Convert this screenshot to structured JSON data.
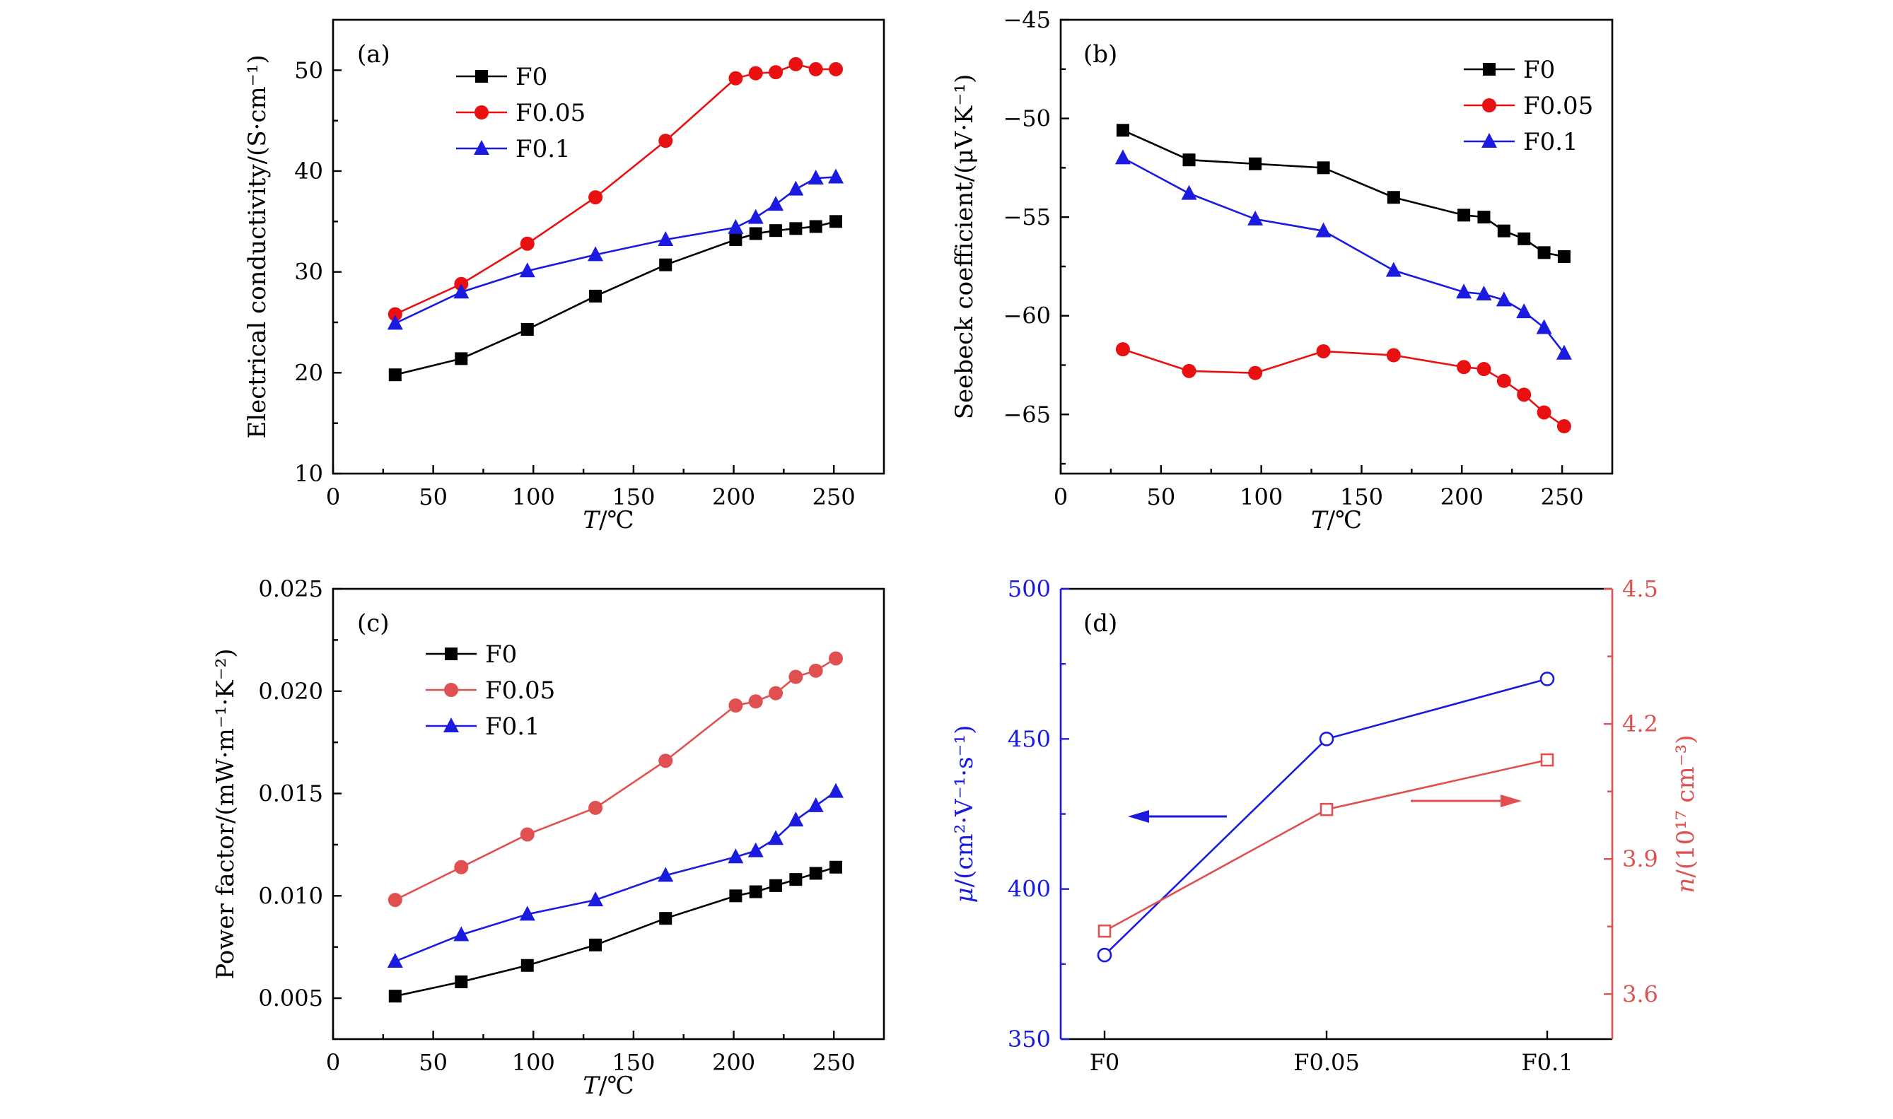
{
  "colors": {
    "F0": "#000000",
    "F0.05_a": "#e81010",
    "F0.05_c": "#e05050",
    "F0.1": "#1a1ae0",
    "mu": "#1a1ae0",
    "n": "#e05050"
  },
  "chart_data": [
    {
      "panel": "(a)",
      "type": "line",
      "xlabel": "T/℃",
      "ylabel": "Electrical conductivity/(S·cm⁻¹)",
      "xlim": [
        0,
        275
      ],
      "ylim": [
        10,
        55
      ],
      "xticks": [
        "0",
        "50",
        "100",
        "150",
        "200",
        "250"
      ],
      "yticks": [
        "10",
        "20",
        "30",
        "40",
        "50"
      ],
      "legend_position": "top-left",
      "series": [
        {
          "name": "F0",
          "marker": "square",
          "color": "#000000",
          "x": [
            31,
            64,
            97,
            131,
            166,
            201,
            211,
            221,
            231,
            241,
            251
          ],
          "y": [
            19.8,
            21.4,
            24.3,
            27.6,
            30.7,
            33.2,
            33.8,
            34.1,
            34.3,
            34.5,
            35.0
          ]
        },
        {
          "name": "F0.05",
          "marker": "circle",
          "color": "#e81010",
          "x": [
            31,
            64,
            97,
            131,
            166,
            201,
            211,
            221,
            231,
            241,
            251
          ],
          "y": [
            25.8,
            28.8,
            32.8,
            37.4,
            43.0,
            49.2,
            49.7,
            49.8,
            50.6,
            50.1,
            50.1
          ]
        },
        {
          "name": "F0.1",
          "marker": "triangle",
          "color": "#1a1ae0",
          "x": [
            31,
            64,
            97,
            131,
            166,
            201,
            211,
            221,
            231,
            241,
            251
          ],
          "y": [
            24.9,
            28.0,
            30.1,
            31.7,
            33.2,
            34.4,
            35.4,
            36.7,
            38.2,
            39.3,
            39.4
          ]
        }
      ]
    },
    {
      "panel": "(b)",
      "type": "line",
      "xlabel": "T/℃",
      "ylabel": "Seebeck coefficient/(μV·K⁻¹)",
      "xlim": [
        0,
        275
      ],
      "ylim": [
        -68,
        -45
      ],
      "xticks": [
        "0",
        "50",
        "100",
        "150",
        "200",
        "250"
      ],
      "yticks": [
        "−45",
        "−50",
        "−55",
        "−60",
        "−65"
      ],
      "legend_position": "top-right",
      "series": [
        {
          "name": "F0",
          "marker": "square",
          "color": "#000000",
          "x": [
            31,
            64,
            97,
            131,
            166,
            201,
            211,
            221,
            231,
            241,
            251
          ],
          "y": [
            -50.6,
            -52.1,
            -52.3,
            -52.5,
            -54.0,
            -54.9,
            -55.0,
            -55.7,
            -56.1,
            -56.8,
            -57.0
          ]
        },
        {
          "name": "F0.05",
          "marker": "circle",
          "color": "#e81010",
          "x": [
            31,
            64,
            97,
            131,
            166,
            201,
            211,
            221,
            231,
            241,
            251
          ],
          "y": [
            -61.7,
            -62.8,
            -62.9,
            -61.8,
            -62.0,
            -62.6,
            -62.7,
            -63.3,
            -64.0,
            -64.9,
            -65.6
          ]
        },
        {
          "name": "F0.1",
          "marker": "triangle",
          "color": "#1a1ae0",
          "x": [
            31,
            64,
            97,
            131,
            166,
            201,
            211,
            221,
            231,
            241,
            251
          ],
          "y": [
            -52.0,
            -53.8,
            -55.1,
            -55.7,
            -57.7,
            -58.8,
            -58.9,
            -59.2,
            -59.8,
            -60.6,
            -61.9
          ]
        }
      ]
    },
    {
      "panel": "(c)",
      "type": "line",
      "xlabel": "T/℃",
      "ylabel": "Power factor/(mW·m⁻¹·K⁻²)",
      "xlim": [
        0,
        275
      ],
      "ylim": [
        0.003,
        0.025
      ],
      "xticks": [
        "0",
        "50",
        "100",
        "150",
        "200",
        "250"
      ],
      "yticks": [
        "0.005",
        "0.010",
        "0.015",
        "0.020",
        "0.025"
      ],
      "legend_position": "top-left",
      "series": [
        {
          "name": "F0",
          "marker": "square",
          "color": "#000000",
          "x": [
            31,
            64,
            97,
            131,
            166,
            201,
            211,
            221,
            231,
            241,
            251
          ],
          "y": [
            0.0051,
            0.0058,
            0.0066,
            0.0076,
            0.0089,
            0.01,
            0.0102,
            0.0105,
            0.0108,
            0.0111,
            0.0114
          ]
        },
        {
          "name": "F0.05",
          "marker": "circle",
          "color": "#e05050",
          "x": [
            31,
            64,
            97,
            131,
            166,
            201,
            211,
            221,
            231,
            241,
            251
          ],
          "y": [
            0.0098,
            0.0114,
            0.013,
            0.0143,
            0.0166,
            0.0193,
            0.0195,
            0.0199,
            0.0207,
            0.021,
            0.0216
          ]
        },
        {
          "name": "F0.1",
          "marker": "triangle",
          "color": "#1a1ae0",
          "x": [
            31,
            64,
            97,
            131,
            166,
            201,
            211,
            221,
            231,
            241,
            251
          ],
          "y": [
            0.0068,
            0.0081,
            0.0091,
            0.0098,
            0.011,
            0.0119,
            0.0122,
            0.0128,
            0.0137,
            0.0144,
            0.0151
          ]
        }
      ]
    },
    {
      "panel": "(d)",
      "type": "line",
      "categories": [
        "F0",
        "F0.05",
        "F0.1"
      ],
      "ylabel_left": "μ/(cm²·V⁻¹·s⁻¹)",
      "ylabel_right": "n/(10¹⁷ cm⁻³)",
      "ylim_left": [
        350,
        500
      ],
      "ylim_right": [
        3.5,
        4.5
      ],
      "yticks_left": [
        "350",
        "400",
        "450",
        "500"
      ],
      "yticks_right": [
        "3.6",
        "3.9",
        "4.2",
        "4.5"
      ],
      "series": [
        {
          "axis": "left",
          "marker": "open-circle",
          "color": "#1a1ae0",
          "values": [
            378,
            450,
            470
          ]
        },
        {
          "axis": "right",
          "marker": "open-square",
          "color": "#e05050",
          "values": [
            3.74,
            4.01,
            4.12
          ]
        }
      ],
      "annotations": [
        "left-arrow toward μ axis (blue)",
        "right-arrow toward n axis (red)"
      ]
    }
  ]
}
